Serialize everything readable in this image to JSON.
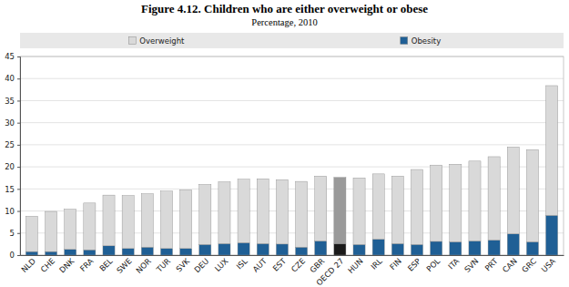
{
  "chart_data": {
    "type": "bar",
    "title": "Figure 4.12. Children who are either overweight or obese",
    "subtitle": "Percentage, 2010",
    "stacked": true,
    "grid": true,
    "legend": "top",
    "categories": [
      "NLD",
      "CHE",
      "DNK",
      "FRA",
      "BEL",
      "SWE",
      "NOR",
      "TUR",
      "SVK",
      "DEU",
      "LUX",
      "ISL",
      "AUT",
      "EST",
      "CZE",
      "GBR",
      "OECD 27",
      "HUN",
      "IRL",
      "FIN",
      "ESP",
      "POL",
      "ITA",
      "SVN",
      "PRT",
      "CAN",
      "GRC",
      "USA"
    ],
    "series": [
      {
        "name": "Obesity",
        "color": "#1f5f95",
        "colors": [
          "#1f5f95",
          "#1f5f95",
          "#1f5f95",
          "#1f5f95",
          "#1f5f95",
          "#1f5f95",
          "#1f5f95",
          "#1f5f95",
          "#1f5f95",
          "#1f5f95",
          "#1f5f95",
          "#1f5f95",
          "#1f5f95",
          "#1f5f95",
          "#1f5f95",
          "#1f5f95",
          "#1a1a1a",
          "#1f5f95",
          "#1f5f95",
          "#1f5f95",
          "#1f5f95",
          "#1f5f95",
          "#1f5f95",
          "#1f5f95",
          "#1f5f95",
          "#1f5f95",
          "#1f5f95",
          "#1f5f95"
        ],
        "values": [
          0.8,
          0.8,
          1.3,
          1.2,
          2.1,
          1.5,
          1.8,
          1.5,
          1.5,
          2.4,
          2.6,
          2.8,
          2.6,
          2.5,
          1.8,
          3.2,
          2.6,
          2.4,
          3.6,
          2.6,
          2.4,
          3.1,
          3.0,
          3.2,
          3.4,
          4.8,
          3.0,
          9.0
        ]
      },
      {
        "name": "Overweight",
        "color": "#d9d9d9",
        "colors": [
          "#d9d9d9",
          "#d9d9d9",
          "#d9d9d9",
          "#d9d9d9",
          "#d9d9d9",
          "#d9d9d9",
          "#d9d9d9",
          "#d9d9d9",
          "#d9d9d9",
          "#d9d9d9",
          "#d9d9d9",
          "#d9d9d9",
          "#d9d9d9",
          "#d9d9d9",
          "#d9d9d9",
          "#d9d9d9",
          "#9a9a9a",
          "#d9d9d9",
          "#d9d9d9",
          "#d9d9d9",
          "#d9d9d9",
          "#d9d9d9",
          "#d9d9d9",
          "#d9d9d9",
          "#d9d9d9",
          "#d9d9d9",
          "#d9d9d9",
          "#d9d9d9"
        ],
        "values": [
          8.0,
          9.1,
          9.1,
          10.6,
          11.5,
          12.0,
          12.1,
          13.0,
          13.3,
          13.6,
          14.0,
          14.4,
          14.7,
          14.6,
          14.9,
          14.7,
          15.0,
          15.1,
          14.8,
          15.3,
          17.0,
          17.3,
          17.6,
          18.1,
          18.9,
          19.7,
          20.9,
          29.4
        ]
      }
    ],
    "ylim": [
      0,
      45
    ],
    "yticks": [
      0,
      5,
      10,
      15,
      20,
      25,
      30,
      35,
      40,
      45
    ]
  }
}
